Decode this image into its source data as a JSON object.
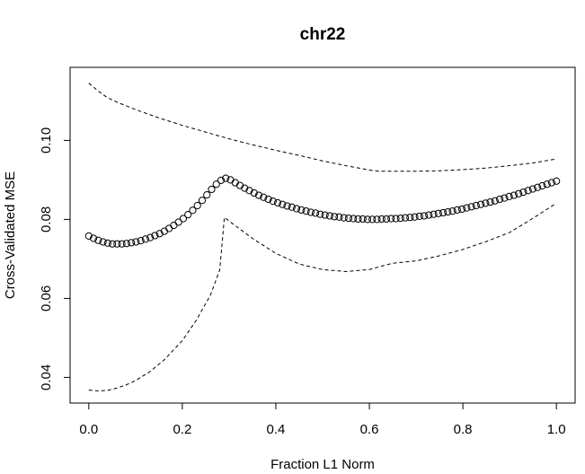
{
  "chart_data": {
    "type": "scatter",
    "title": "chr22",
    "xlabel": "Fraction L1 Norm",
    "ylabel": "Cross-Validated MSE",
    "xlim": [
      -0.04,
      1.04
    ],
    "ylim": [
      0.0335,
      0.1185
    ],
    "x_ticks": [
      "0.0",
      "0.2",
      "0.4",
      "0.6",
      "0.8",
      "1.0"
    ],
    "y_ticks": [
      "0.04",
      "0.06",
      "0.08",
      "0.10"
    ],
    "grid": false,
    "legend": "none",
    "series": [
      {
        "role": "cv-mean",
        "style": "open-circles",
        "x": [
          0.0,
          0.0101,
          0.0202,
          0.0303,
          0.0404,
          0.0505,
          0.0606,
          0.0707,
          0.0808,
          0.0909,
          0.101,
          0.1111,
          0.1212,
          0.1313,
          0.1414,
          0.1515,
          0.1616,
          0.1717,
          0.1818,
          0.1919,
          0.202,
          0.2121,
          0.2222,
          0.2323,
          0.2424,
          0.2525,
          0.2626,
          0.2727,
          0.2828,
          0.2929,
          0.303,
          0.3131,
          0.3232,
          0.3333,
          0.3434,
          0.3535,
          0.3636,
          0.3737,
          0.3838,
          0.3939,
          0.404,
          0.4141,
          0.4242,
          0.4343,
          0.4444,
          0.4545,
          0.4646,
          0.4747,
          0.4848,
          0.4949,
          0.5051,
          0.5152,
          0.5253,
          0.5354,
          0.5455,
          0.5556,
          0.5657,
          0.5758,
          0.5859,
          0.596,
          0.6061,
          0.6162,
          0.6263,
          0.6364,
          0.6465,
          0.6566,
          0.6667,
          0.6768,
          0.6869,
          0.697,
          0.7071,
          0.7172,
          0.7273,
          0.7374,
          0.7475,
          0.7576,
          0.7677,
          0.7778,
          0.7879,
          0.798,
          0.8081,
          0.8182,
          0.8283,
          0.8384,
          0.8485,
          0.8586,
          0.8687,
          0.8788,
          0.8889,
          0.899,
          0.9091,
          0.9192,
          0.9293,
          0.9394,
          0.9495,
          0.9596,
          0.9697,
          0.9798,
          0.9899,
          1.0
        ],
        "y": [
          0.0758,
          0.0752,
          0.0747,
          0.0743,
          0.074,
          0.0738,
          0.0738,
          0.0738,
          0.0739,
          0.0741,
          0.0743,
          0.0746,
          0.075,
          0.0754,
          0.0759,
          0.0764,
          0.077,
          0.0777,
          0.0785,
          0.0793,
          0.0802,
          0.0812,
          0.0823,
          0.0835,
          0.0848,
          0.0862,
          0.0876,
          0.0889,
          0.0899,
          0.0904,
          0.09,
          0.0893,
          0.0886,
          0.0879,
          0.0873,
          0.0867,
          0.0861,
          0.0856,
          0.0851,
          0.0846,
          0.0842,
          0.0838,
          0.0834,
          0.0831,
          0.0827,
          0.0824,
          0.0821,
          0.0818,
          0.0816,
          0.0813,
          0.0811,
          0.0809,
          0.0807,
          0.0806,
          0.0804,
          0.0803,
          0.0802,
          0.0801,
          0.0801,
          0.08,
          0.08,
          0.08,
          0.0801,
          0.0801,
          0.0802,
          0.0802,
          0.0803,
          0.0804,
          0.0805,
          0.0806,
          0.0808,
          0.0809,
          0.0811,
          0.0813,
          0.0815,
          0.0817,
          0.0819,
          0.0821,
          0.0824,
          0.0826,
          0.0829,
          0.0832,
          0.0835,
          0.0838,
          0.0841,
          0.0844,
          0.0847,
          0.0851,
          0.0854,
          0.0858,
          0.0861,
          0.0865,
          0.0869,
          0.0873,
          0.0877,
          0.0881,
          0.0885,
          0.0889,
          0.0893,
          0.0897
        ]
      },
      {
        "role": "upper-bound",
        "style": "dashed-line",
        "x": [
          0.0,
          0.02,
          0.04,
          0.06,
          0.1,
          0.15,
          0.2,
          0.25,
          0.3,
          0.35,
          0.4,
          0.45,
          0.5,
          0.55,
          0.6,
          0.62,
          0.65,
          0.7,
          0.75,
          0.8,
          0.85,
          0.9,
          0.95,
          1.0
        ],
        "y": [
          0.1145,
          0.1125,
          0.1108,
          0.1097,
          0.1078,
          0.1057,
          0.1038,
          0.1021,
          0.1004,
          0.0989,
          0.0975,
          0.0962,
          0.0948,
          0.0936,
          0.0925,
          0.0922,
          0.0922,
          0.0922,
          0.0923,
          0.0926,
          0.093,
          0.0936,
          0.0943,
          0.0953
        ]
      },
      {
        "role": "lower-bound",
        "style": "dashed-line",
        "x": [
          0.0,
          0.02,
          0.04,
          0.06,
          0.08,
          0.1,
          0.13,
          0.16,
          0.2,
          0.23,
          0.26,
          0.28,
          0.29,
          0.31,
          0.35,
          0.4,
          0.45,
          0.5,
          0.55,
          0.6,
          0.63,
          0.65,
          0.7,
          0.75,
          0.8,
          0.85,
          0.9,
          0.95,
          1.0
        ],
        "y": [
          0.0368,
          0.0366,
          0.0367,
          0.0373,
          0.0381,
          0.0392,
          0.0414,
          0.0443,
          0.0493,
          0.0545,
          0.0608,
          0.0672,
          0.0805,
          0.0787,
          0.0752,
          0.0714,
          0.0687,
          0.0673,
          0.0668,
          0.0673,
          0.0683,
          0.0689,
          0.0695,
          0.0708,
          0.0724,
          0.0744,
          0.0767,
          0.0803,
          0.0841
        ]
      }
    ]
  }
}
